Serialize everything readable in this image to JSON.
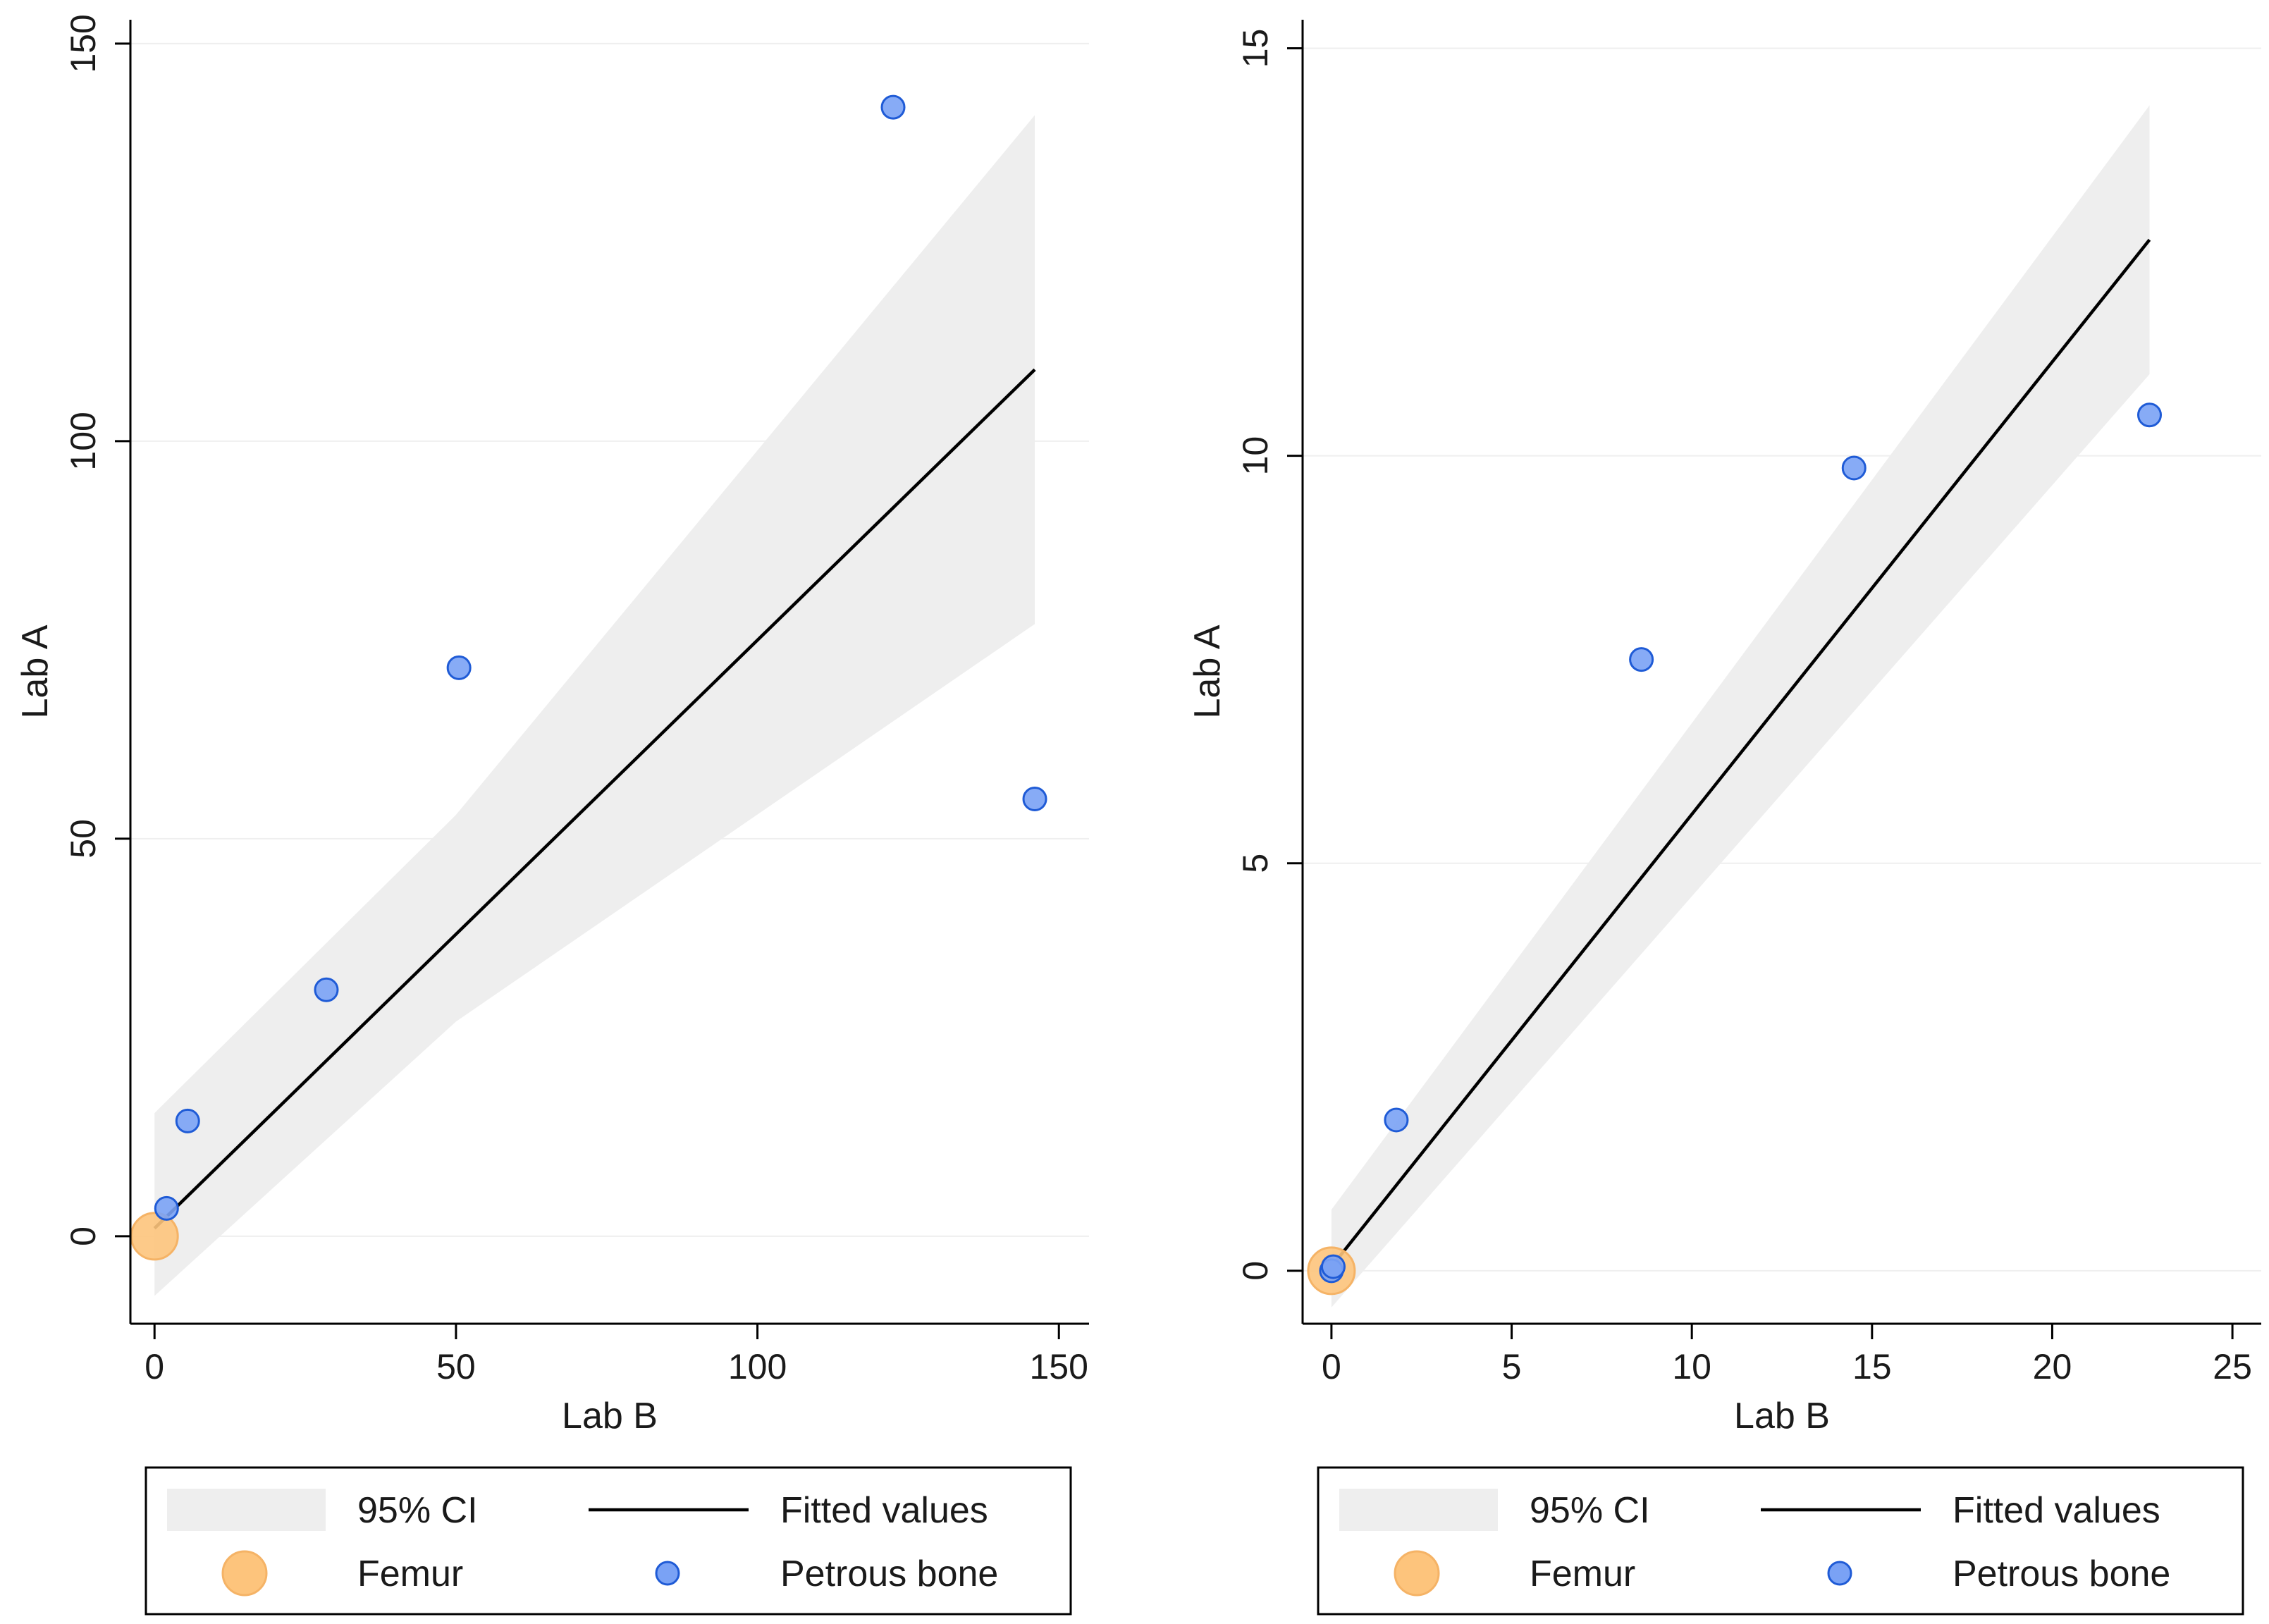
{
  "chart_data": [
    {
      "type": "scatter",
      "xlabel": "Lab B",
      "ylabel": "Lab A",
      "xlim": [
        -4,
        155
      ],
      "ylim": [
        -11,
        153
      ],
      "xticks": [
        0,
        50,
        100,
        150
      ],
      "yticks": [
        0,
        50,
        100,
        150
      ],
      "xtick_labels": [
        "0",
        "50",
        "100",
        "150"
      ],
      "ytick_labels": [
        "0",
        "50",
        "100",
        "150"
      ],
      "grid": true,
      "legend_position": "bottom",
      "fit": {
        "name": "Fitted values",
        "x": [
          0,
          146
        ],
        "y": [
          1.0,
          109
        ]
      },
      "ci_band": {
        "name": "95% CI",
        "x": [
          0,
          50,
          146
        ],
        "upper": [
          15.5,
          53,
          141
        ],
        "lower": [
          -7.5,
          27,
          77
        ]
      },
      "series": [
        {
          "name": "Femur",
          "points": [
            [
              0,
              0
            ]
          ]
        },
        {
          "name": "Petrous bone",
          "points": [
            [
              2,
              3.5
            ],
            [
              5.5,
              14.5
            ],
            [
              28.5,
              31
            ],
            [
              50.5,
              71.5
            ],
            [
              122.5,
              142
            ],
            [
              146,
              55
            ]
          ]
        }
      ],
      "legend": [
        {
          "label": "95% CI",
          "kind": "band"
        },
        {
          "label": "Fitted values",
          "kind": "line"
        },
        {
          "label": "Femur",
          "kind": "big-dot"
        },
        {
          "label": "Petrous bone",
          "kind": "small-dot"
        }
      ]
    },
    {
      "type": "scatter",
      "xlabel": "Lab B",
      "ylabel": "Lab A",
      "xlim": [
        -0.8,
        25.8
      ],
      "ylim": [
        -0.65,
        15.35
      ],
      "xticks": [
        0,
        5,
        10,
        15,
        20,
        25
      ],
      "yticks": [
        0,
        5,
        10,
        15
      ],
      "xtick_labels": [
        "0",
        "5",
        "10",
        "15",
        "20",
        "25"
      ],
      "ytick_labels": [
        "0",
        "5",
        "10",
        "15"
      ],
      "grid": true,
      "legend_position": "bottom",
      "fit": {
        "name": "Fitted values",
        "x": [
          0,
          22.7
        ],
        "y": [
          0.05,
          12.65
        ]
      },
      "ci_band": {
        "name": "95% CI",
        "x": [
          0,
          22.7
        ],
        "upper": [
          0.75,
          14.3
        ],
        "lower": [
          -0.45,
          11.0
        ]
      },
      "series": [
        {
          "name": "Femur",
          "points": [
            [
              0,
              0
            ]
          ]
        },
        {
          "name": "Petrous bone",
          "points": [
            [
              0,
              0
            ],
            [
              0.05,
              0.05
            ],
            [
              1.8,
              1.85
            ],
            [
              8.6,
              7.5
            ],
            [
              14.5,
              9.85
            ],
            [
              22.7,
              10.5
            ]
          ]
        }
      ],
      "legend": [
        {
          "label": "95% CI",
          "kind": "band"
        },
        {
          "label": "Fitted values",
          "kind": "line"
        },
        {
          "label": "Femur",
          "kind": "big-dot"
        },
        {
          "label": "Petrous bone",
          "kind": "small-dot"
        }
      ]
    }
  ],
  "colors": {
    "band": "#eeeeee",
    "fit_line": "#000000",
    "femur": "#fdc47c",
    "femur_stroke": "#f5b366",
    "petrous": "#7aa2f5",
    "petrous_stroke": "#1f5bd6",
    "grid": "#efefef",
    "axis": "#000000"
  }
}
